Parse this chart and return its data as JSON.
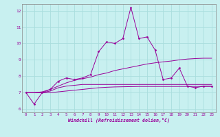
{
  "xlabel": "Windchill (Refroidissement éolien,°C)",
  "xlim": [
    -0.5,
    23.5
  ],
  "ylim": [
    5.8,
    12.4
  ],
  "yticks": [
    6,
    7,
    8,
    9,
    10,
    11,
    12
  ],
  "xticks": [
    0,
    1,
    2,
    3,
    4,
    5,
    6,
    7,
    8,
    9,
    10,
    11,
    12,
    13,
    14,
    15,
    16,
    17,
    18,
    19,
    20,
    21,
    22,
    23
  ],
  "background_color": "#c8f0f0",
  "grid_color": "#aadddd",
  "line_color": "#990099",
  "series": {
    "main": [
      7.0,
      6.3,
      7.0,
      7.2,
      7.7,
      7.9,
      7.8,
      7.9,
      8.1,
      9.5,
      10.1,
      10.0,
      10.3,
      12.2,
      10.3,
      10.4,
      9.6,
      7.8,
      7.9,
      8.5,
      7.4,
      7.3,
      7.4,
      7.4
    ],
    "smooth_rise": [
      7.0,
      7.0,
      7.05,
      7.2,
      7.4,
      7.6,
      7.75,
      7.85,
      7.95,
      8.1,
      8.2,
      8.35,
      8.45,
      8.55,
      8.65,
      8.75,
      8.82,
      8.88,
      8.93,
      9.0,
      9.05,
      9.08,
      9.1,
      9.1
    ],
    "flat_high": [
      7.0,
      7.0,
      7.0,
      7.1,
      7.3,
      7.4,
      7.45,
      7.5,
      7.5,
      7.5,
      7.5,
      7.5,
      7.5,
      7.5,
      7.5,
      7.5,
      7.5,
      7.5,
      7.5,
      7.5,
      7.5,
      7.5,
      7.5,
      7.5
    ],
    "flat_low": [
      7.0,
      7.0,
      7.0,
      7.0,
      7.05,
      7.1,
      7.15,
      7.2,
      7.25,
      7.3,
      7.33,
      7.35,
      7.36,
      7.37,
      7.38,
      7.38,
      7.38,
      7.38,
      7.38,
      7.38,
      7.38,
      7.38,
      7.38,
      7.38
    ]
  }
}
